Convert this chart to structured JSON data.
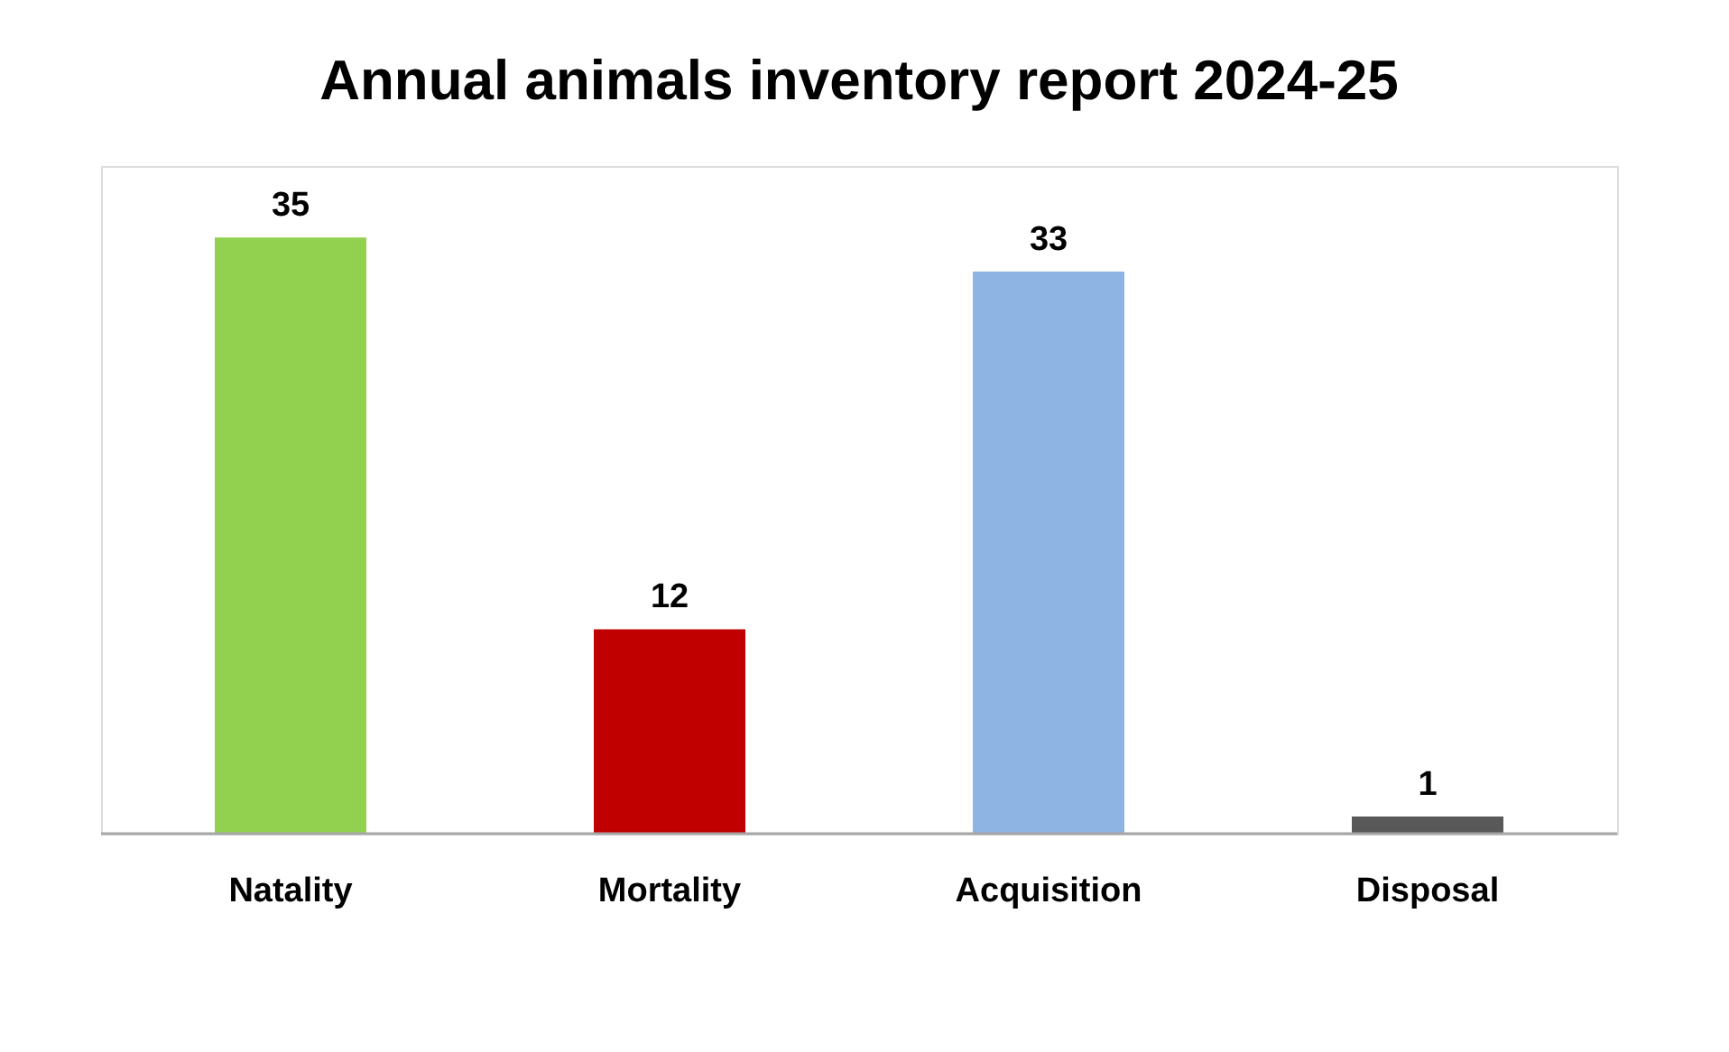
{
  "chart_data": {
    "type": "bar",
    "title": "Annual animals inventory report 2024-25",
    "categories": [
      "Natality",
      "Mortality",
      "Acquisition",
      "Disposal"
    ],
    "values": [
      35,
      12,
      33,
      1
    ],
    "colors": [
      "#92d050",
      "#c00000",
      "#8db4e2",
      "#595959"
    ],
    "data_labels": true,
    "grid": false
  }
}
